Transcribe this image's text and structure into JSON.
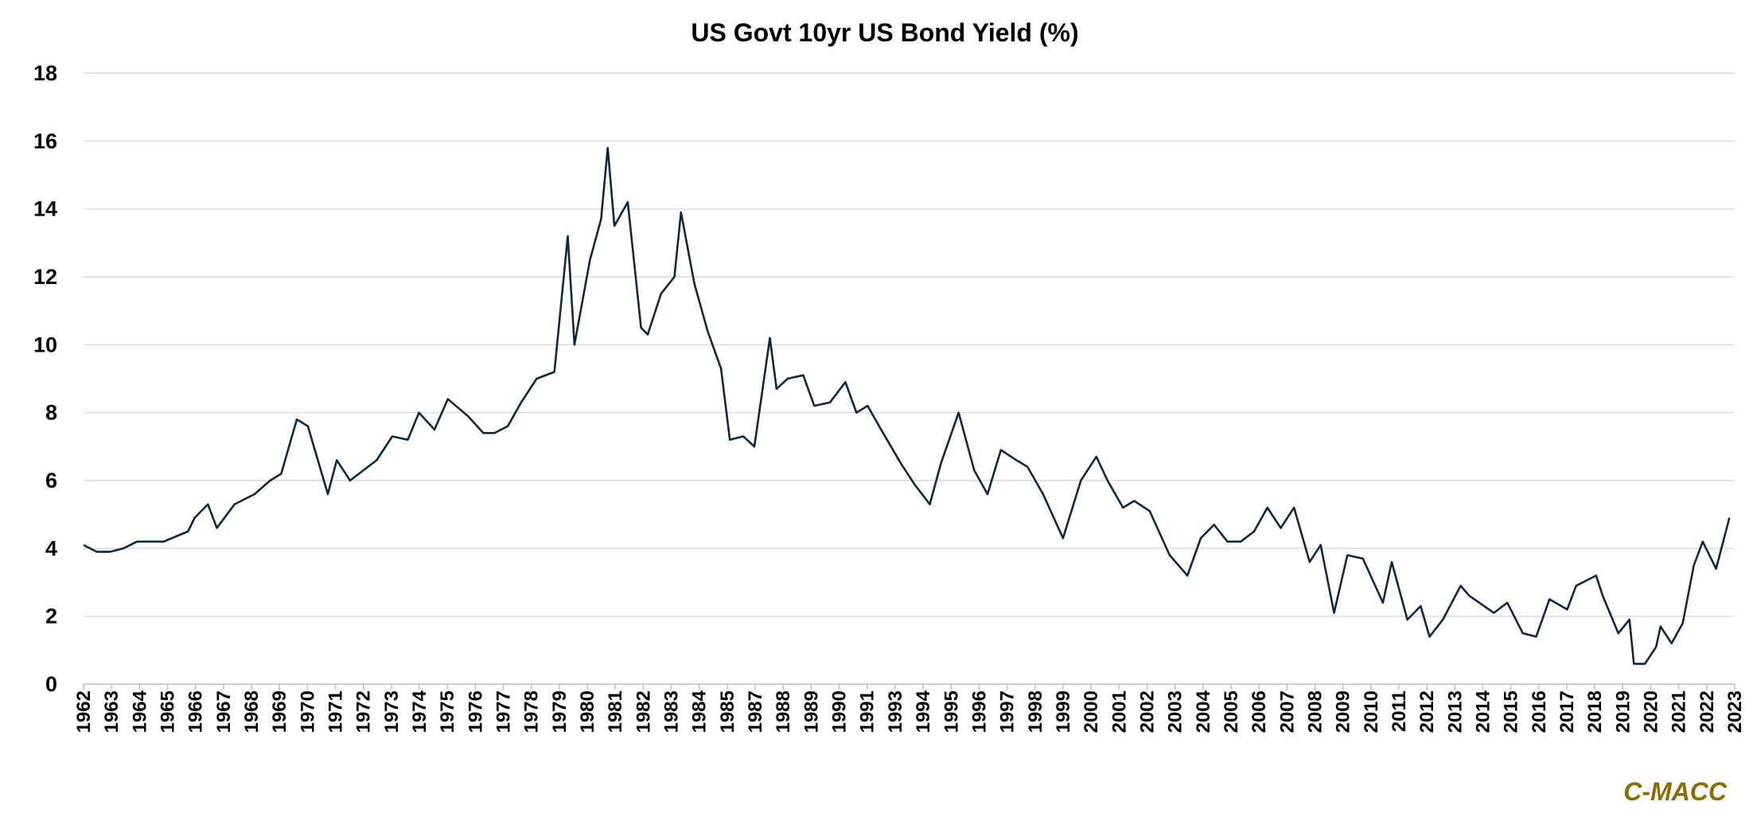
{
  "chart_data": {
    "type": "line",
    "title": "US Govt 10yr US Bond Yield (%)",
    "xlabel": "",
    "ylabel": "",
    "ylim": [
      0,
      18
    ],
    "yticks": [
      0,
      2,
      4,
      6,
      8,
      10,
      12,
      14,
      16,
      18
    ],
    "grid": true,
    "legend": "none",
    "xticks": [
      "1962",
      "1963",
      "1964",
      "1965",
      "1966",
      "1967",
      "1968",
      "1969",
      "1970",
      "1971",
      "1972",
      "1973",
      "1974",
      "1975",
      "1976",
      "1977",
      "1978",
      "1979",
      "1980",
      "1981",
      "1982",
      "1983",
      "1984",
      "1985",
      "1987",
      "1988",
      "1989",
      "1990",
      "1991",
      "1993",
      "1994",
      "1995",
      "1996",
      "1997",
      "1998",
      "1999",
      "2000",
      "2001",
      "2002",
      "2003",
      "2004",
      "2005",
      "2006",
      "2007",
      "2008",
      "2009",
      "2010",
      "2011",
      "2012",
      "2013",
      "2014",
      "2015",
      "2016",
      "2017",
      "2018",
      "2019",
      "2020",
      "2021",
      "2022",
      "2023"
    ],
    "series": [
      {
        "color": "#0e2841",
        "x": [
          "1962-01",
          "1962-07",
          "1963-01",
          "1963-07",
          "1964-01",
          "1965-01",
          "1965-12",
          "1966-03",
          "1966-09",
          "1967-01",
          "1967-09",
          "1968-06",
          "1969-01",
          "1969-06",
          "1970-01",
          "1970-06",
          "1971-03",
          "1971-07",
          "1972-01",
          "1973-01",
          "1973-08",
          "1974-03",
          "1974-08",
          "1975-03",
          "1975-09",
          "1976-06",
          "1977-01",
          "1977-06",
          "1977-12",
          "1978-06",
          "1979-01",
          "1979-09",
          "1980-03",
          "1980-06",
          "1981-01",
          "1981-06",
          "1981-09",
          "1981-12",
          "1982-06",
          "1982-12",
          "1983-03",
          "1983-09",
          "1984-03",
          "1984-06",
          "1984-12",
          "1985-06",
          "1985-12",
          "1986-04",
          "1986-10",
          "1987-03",
          "1987-10",
          "1988-01",
          "1988-06",
          "1989-01",
          "1989-06",
          "1990-01",
          "1990-08",
          "1991-01",
          "1991-06",
          "1992-01",
          "1992-09",
          "1993-03",
          "1993-10",
          "1994-03",
          "1994-11",
          "1995-06",
          "1995-12",
          "1996-06",
          "1997-01",
          "1997-06",
          "1998-01",
          "1998-10",
          "1999-06",
          "2000-01",
          "2000-06",
          "2001-01",
          "2001-06",
          "2002-01",
          "2002-10",
          "2003-06",
          "2003-12",
          "2004-06",
          "2004-12",
          "2005-06",
          "2005-12",
          "2006-06",
          "2006-12",
          "2007-06",
          "2008-01",
          "2008-06",
          "2008-12",
          "2009-06",
          "2010-01",
          "2010-10",
          "2011-02",
          "2011-09",
          "2012-03",
          "2012-07",
          "2013-01",
          "2013-09",
          "2014-01",
          "2014-12",
          "2015-06",
          "2016-01",
          "2016-07",
          "2017-01",
          "2017-09",
          "2018-01",
          "2018-10",
          "2019-01",
          "2019-08",
          "2020-01",
          "2020-03",
          "2020-08",
          "2021-01",
          "2021-03",
          "2021-08",
          "2022-01",
          "2022-06",
          "2022-10",
          "2023-04",
          "2023-10"
        ],
        "values": [
          4.1,
          3.9,
          3.9,
          4.0,
          4.2,
          4.2,
          4.5,
          4.9,
          5.3,
          4.6,
          5.3,
          5.6,
          6.0,
          6.2,
          7.8,
          7.6,
          5.6,
          6.6,
          6.0,
          6.6,
          7.3,
          7.2,
          8.0,
          7.5,
          8.4,
          7.9,
          7.4,
          7.4,
          7.6,
          8.3,
          9.0,
          9.2,
          13.2,
          10.0,
          12.5,
          13.7,
          15.8,
          13.5,
          14.2,
          10.5,
          10.3,
          11.5,
          12.0,
          13.9,
          11.8,
          10.4,
          9.3,
          7.2,
          7.3,
          7.0,
          10.2,
          8.7,
          9.0,
          9.1,
          8.2,
          8.3,
          8.9,
          8.0,
          8.2,
          7.4,
          6.5,
          5.9,
          5.3,
          6.5,
          8.0,
          6.3,
          5.6,
          6.9,
          6.6,
          6.4,
          5.6,
          4.3,
          6.0,
          6.7,
          6.0,
          5.2,
          5.4,
          5.1,
          3.8,
          3.2,
          4.3,
          4.7,
          4.2,
          4.2,
          4.5,
          5.2,
          4.6,
          5.2,
          3.6,
          4.1,
          2.1,
          3.8,
          3.7,
          2.4,
          3.6,
          1.9,
          2.3,
          1.4,
          1.9,
          2.9,
          2.6,
          2.1,
          2.4,
          1.5,
          1.4,
          2.5,
          2.2,
          2.9,
          3.2,
          2.6,
          1.5,
          1.9,
          0.6,
          0.6,
          1.1,
          1.7,
          1.2,
          1.8,
          3.5,
          4.2,
          3.4,
          4.9
        ]
      }
    ]
  },
  "footer": {
    "brand": "C-MACC"
  }
}
